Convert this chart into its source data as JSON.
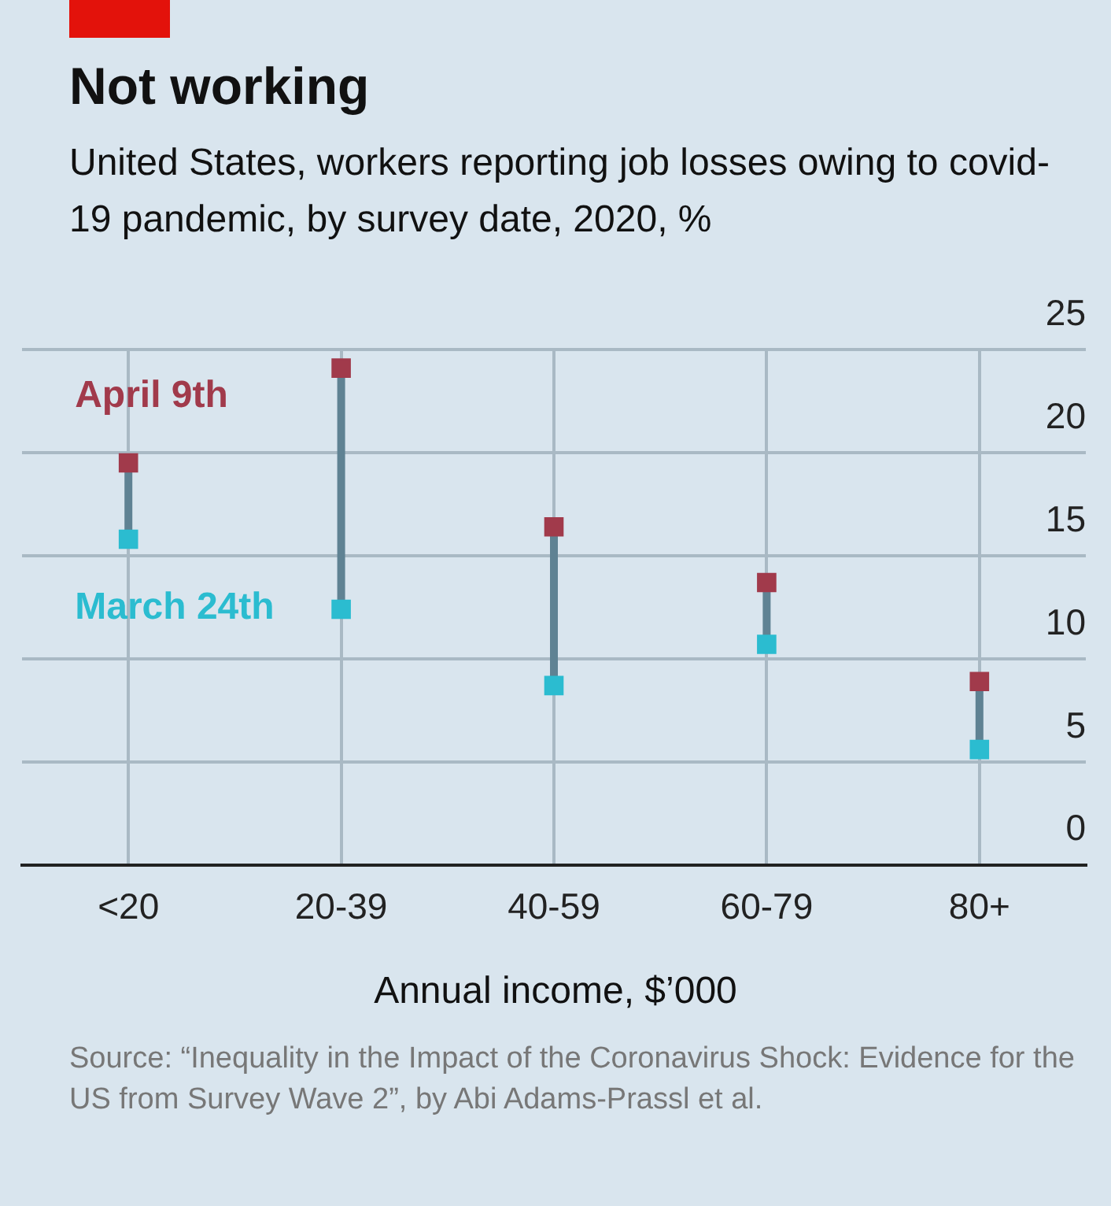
{
  "chart_data": {
    "type": "scatter",
    "title": "Not working",
    "subtitle": "United States, workers reporting job losses owing to covid-19 pandemic, by survey date, 2020, %",
    "xlabel": "Annual income, $’000",
    "annotations": [
      "Source: “Inequality in the Impact of the Coronavirus Shock: Evidence for the US from Survey Wave 2”, by Abi Adams-Prassl et al."
    ],
    "categories": [
      "<20",
      "20-39",
      "40-59",
      "60-79",
      "80+"
    ],
    "series": [
      {
        "name": "April 9th",
        "color": "#a13a4b",
        "values": [
          19.5,
          24.1,
          16.4,
          13.7,
          8.9
        ]
      },
      {
        "name": "March 24th",
        "color": "#2bbcd0",
        "values": [
          15.8,
          12.4,
          8.7,
          10.7,
          5.6
        ]
      }
    ],
    "ylim": [
      0,
      25
    ],
    "yticks": [
      0,
      5,
      10,
      15,
      20,
      25
    ],
    "grid": true,
    "legend": "top left",
    "marker": "square"
  }
}
